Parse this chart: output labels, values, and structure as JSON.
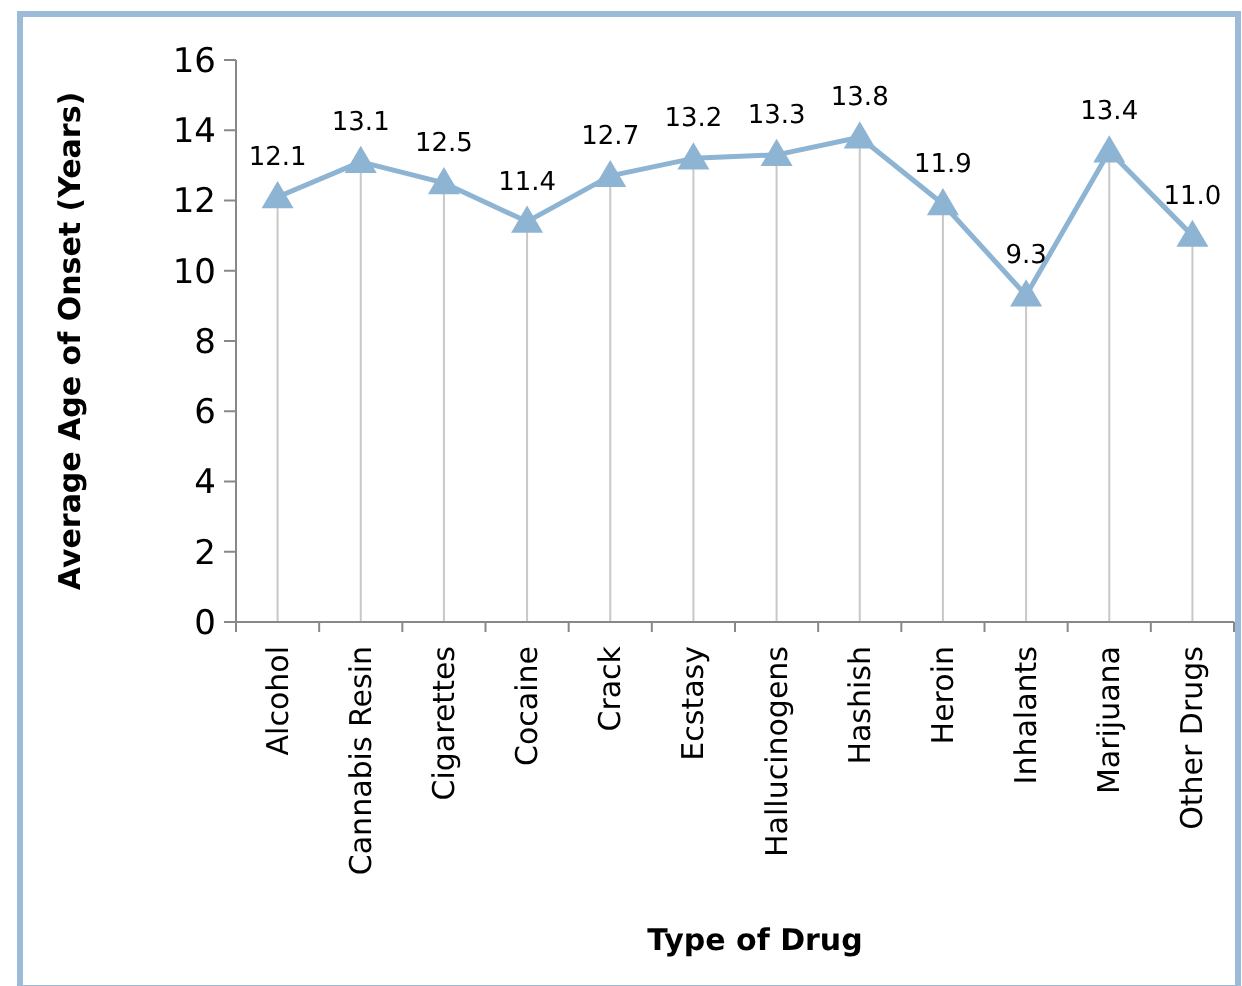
{
  "chart_data": {
    "type": "line",
    "xlabel": "Type of Drug",
    "ylabel": "Average Age of Onset (Years)",
    "categories": [
      "Alcohol",
      "Cannabis Resin",
      "Cigarettes",
      "Cocaine",
      "Crack",
      "Ecstasy",
      "Hallucinogens",
      "Hashish",
      "Heroin",
      "Inhalants",
      "Marijuana",
      "Other Drugs"
    ],
    "series": [
      {
        "color": "#8eb4d4",
        "values": [
          12.1,
          13.1,
          12.5,
          11.4,
          12.7,
          13.2,
          13.3,
          13.8,
          11.9,
          9.3,
          13.4,
          11.0
        ],
        "value_labels": [
          "12.1",
          "13.1",
          "12.5",
          "11.4",
          "12.7",
          "13.2",
          "13.3",
          "13.8",
          "11.9",
          "9.3",
          "13.4",
          "11.0"
        ]
      }
    ],
    "ylim": [
      0,
      16
    ],
    "yticks": [
      0,
      2,
      4,
      6,
      8,
      10,
      12,
      14,
      16
    ],
    "marker": "triangle",
    "line_style": "solid",
    "grid": "x"
  }
}
